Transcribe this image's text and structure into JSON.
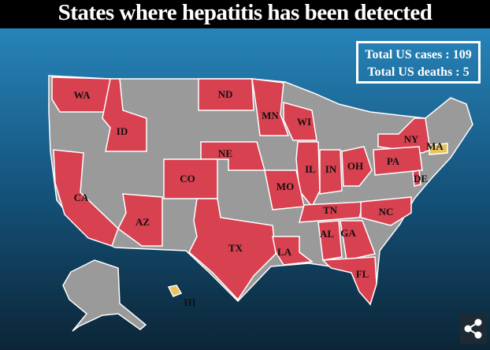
{
  "header": {
    "title": "States where hepatitis has been detected"
  },
  "stats": {
    "cases": "Total US cases : 109",
    "deaths": "Total US deaths : 5"
  },
  "states": [
    {
      "label": "WA",
      "color": "#d8414f"
    },
    {
      "label": "ID",
      "color": "#d8414f"
    },
    {
      "label": "ND",
      "color": "#d8414f"
    },
    {
      "label": "MN",
      "color": "#d8414f"
    },
    {
      "label": "WI",
      "color": "#d8414f"
    },
    {
      "label": "NY",
      "color": "#d8414f"
    },
    {
      "label": "MA",
      "color": "#e9c25c"
    },
    {
      "label": "CA",
      "color": "#d8414f"
    },
    {
      "label": "NE",
      "color": "#d8414f"
    },
    {
      "label": "CO",
      "color": "#d8414f"
    },
    {
      "label": "IL",
      "color": "#d8414f"
    },
    {
      "label": "IN",
      "color": "#d8414f"
    },
    {
      "label": "OH",
      "color": "#d8414f"
    },
    {
      "label": "PA",
      "color": "#d8414f"
    },
    {
      "label": "DE",
      "color": "#d8414f"
    },
    {
      "label": "MO",
      "color": "#d8414f"
    },
    {
      "label": "TN",
      "color": "#d8414f"
    },
    {
      "label": "NC",
      "color": "#d8414f"
    },
    {
      "label": "AZ",
      "color": "#d8414f"
    },
    {
      "label": "AL",
      "color": "#d8414f"
    },
    {
      "label": "GA",
      "color": "#d8414f"
    },
    {
      "label": "TX",
      "color": "#d8414f"
    },
    {
      "label": "LA",
      "color": "#d8414f"
    },
    {
      "label": "FL",
      "color": "#d8414f"
    },
    {
      "label": "HI",
      "color": "#e9c25c"
    }
  ]
}
